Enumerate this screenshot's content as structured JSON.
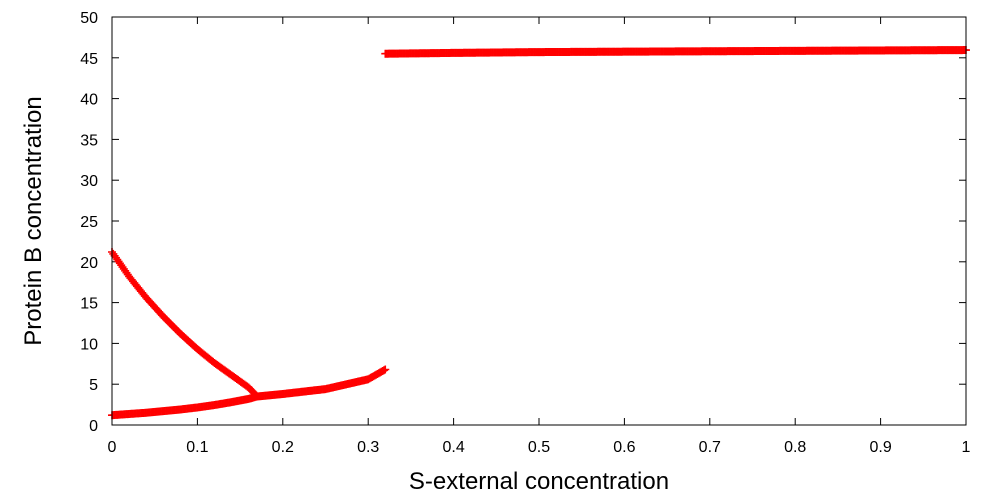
{
  "chart_data": {
    "type": "scatter",
    "title": "",
    "xlabel": "S-external concentration",
    "ylabel": "Protein B concentration",
    "xlim": [
      0,
      1
    ],
    "ylim": [
      0,
      50
    ],
    "x_ticks": [
      0,
      0.1,
      0.2,
      0.3,
      0.4,
      0.5,
      0.6,
      0.7,
      0.8,
      0.9,
      1
    ],
    "x_tick_labels": [
      "0",
      "0.1",
      "0.2",
      "0.3",
      "0.4",
      "0.5",
      "0.6",
      "0.7",
      "0.8",
      "0.9",
      "1"
    ],
    "y_ticks": [
      0,
      5,
      10,
      15,
      20,
      25,
      30,
      35,
      40,
      45,
      50
    ],
    "y_tick_labels": [
      "0",
      "5",
      "10",
      "15",
      "20",
      "25",
      "30",
      "35",
      "40",
      "45",
      "50"
    ],
    "grid": false,
    "legend": "none",
    "marker": "plus",
    "color": "#ff0000",
    "series": [
      {
        "x": [
          0,
          0.02,
          0.04,
          0.06,
          0.08,
          0.1,
          0.12,
          0.14,
          0.16,
          0.17,
          0.2,
          0.25,
          0.3,
          0.32
        ],
        "y": [
          1.2,
          1.35,
          1.5,
          1.7,
          1.9,
          2.15,
          2.45,
          2.8,
          3.2,
          3.5,
          3.8,
          4.4,
          5.6,
          6.8
        ]
      },
      {
        "x": [
          0,
          0.02,
          0.04,
          0.06,
          0.08,
          0.1,
          0.12,
          0.14,
          0.16,
          0.17
        ],
        "y": [
          21.2,
          18.2,
          15.6,
          13.3,
          11.2,
          9.3,
          7.6,
          6.1,
          4.6,
          3.5
        ]
      },
      {
        "x": [
          0.32,
          0.4,
          0.5,
          0.6,
          0.7,
          0.8,
          0.9,
          1.0
        ],
        "y": [
          45.5,
          45.6,
          45.7,
          45.75,
          45.8,
          45.85,
          45.9,
          45.95
        ]
      }
    ]
  }
}
